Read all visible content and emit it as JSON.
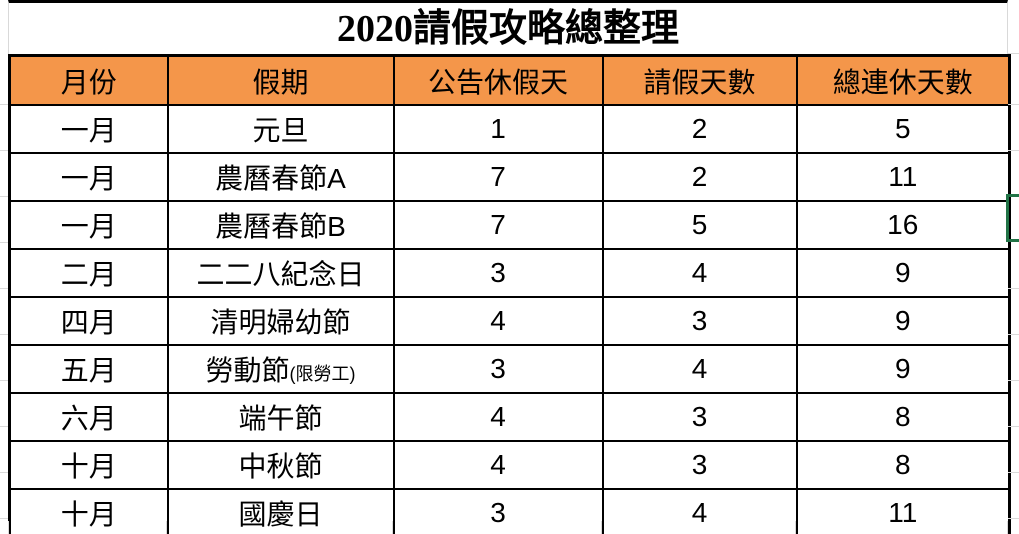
{
  "title": "2020請假攻略總整理",
  "table": {
    "headers": [
      "月份",
      "假期",
      "公告休假天",
      "請假天數",
      "總連休天數"
    ],
    "rows": [
      {
        "month": "一月",
        "holiday": "元旦",
        "note": "",
        "announced": "1",
        "leave": "2",
        "total": "5"
      },
      {
        "month": "一月",
        "holiday": "農曆春節A",
        "note": "",
        "announced": "7",
        "leave": "2",
        "total": "11"
      },
      {
        "month": "一月",
        "holiday": "農曆春節B",
        "note": "",
        "announced": "7",
        "leave": "5",
        "total": "16"
      },
      {
        "month": "二月",
        "holiday": "二二八紀念日",
        "note": "",
        "announced": "3",
        "leave": "4",
        "total": "9"
      },
      {
        "month": "四月",
        "holiday": "清明婦幼節",
        "note": "",
        "announced": "4",
        "leave": "3",
        "total": "9"
      },
      {
        "month": "五月",
        "holiday": "勞動節",
        "note": "(限勞工)",
        "announced": "3",
        "leave": "4",
        "total": "9"
      },
      {
        "month": "六月",
        "holiday": "端午節",
        "note": "",
        "announced": "4",
        "leave": "3",
        "total": "8"
      },
      {
        "month": "十月",
        "holiday": "中秋節",
        "note": "",
        "announced": "4",
        "leave": "3",
        "total": "8"
      },
      {
        "month": "十月",
        "holiday": "國慶日",
        "note": "",
        "announced": "3",
        "leave": "4",
        "total": "11"
      }
    ]
  },
  "colors": {
    "header_bg": "#F4964A",
    "table_border": "#000000",
    "gridline": "#D9D9D9",
    "selection_green": "#217346",
    "text": "#000000"
  }
}
